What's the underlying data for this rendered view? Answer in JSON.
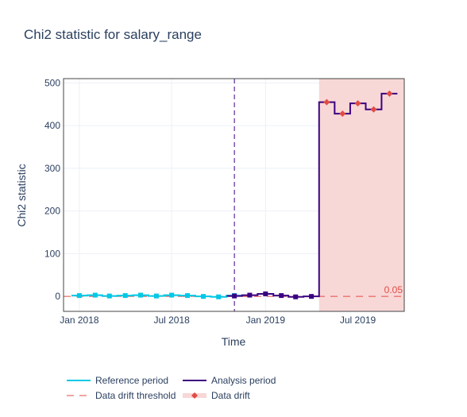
{
  "title": "Chi2 statistic for salary_range",
  "chart_data": {
    "type": "line",
    "title": "Chi2 statistic for salary_range",
    "xlabel": "Time",
    "ylabel": "Chi2 statistic",
    "x_range": [
      "2017-12-01",
      "2019-09-30"
    ],
    "ylim": [
      -35,
      510
    ],
    "x_ticks": [
      {
        "date": "2018-01-01",
        "label": "Jan 2018"
      },
      {
        "date": "2018-07-01",
        "label": "Jul 2018"
      },
      {
        "date": "2019-01-01",
        "label": "Jan 2019"
      },
      {
        "date": "2019-07-01",
        "label": "Jul 2019"
      }
    ],
    "y_ticks": [
      0,
      100,
      200,
      300,
      400,
      500
    ],
    "series": [
      {
        "name": "Reference period",
        "color": "#00c8e5",
        "marker": "square",
        "x": [
          "2018-01-01",
          "2018-02-01",
          "2018-03-01",
          "2018-04-01",
          "2018-05-01",
          "2018-06-01",
          "2018-07-01",
          "2018-08-01",
          "2018-09-01",
          "2018-10-01",
          "2018-11-01"
        ],
        "y": [
          2,
          3,
          1,
          2,
          3,
          1,
          3,
          2,
          0,
          -1,
          2
        ]
      },
      {
        "name": "Analysis period",
        "color": "#3b0280",
        "marker": "square",
        "x": [
          "2018-11-01",
          "2018-12-01",
          "2019-01-01",
          "2019-02-01",
          "2019-03-01",
          "2019-04-01",
          "2019-05-01",
          "2019-06-01",
          "2019-07-01",
          "2019-08-01",
          "2019-09-01"
        ],
        "y": [
          1,
          3,
          6,
          2,
          -1,
          0,
          455,
          428,
          452,
          438,
          475
        ]
      }
    ],
    "threshold": {
      "name": "Data drift threshold",
      "value": 0.05,
      "label": "0.05",
      "color": "#e24c44"
    },
    "drift": {
      "name": "Data drift",
      "start": "2019-04-16",
      "end": "2019-09-30",
      "color": "#f8d7d7",
      "marker_color": "#e24c44",
      "points_x": [
        "2019-05-01",
        "2019-06-01",
        "2019-07-01",
        "2019-08-01",
        "2019-09-01"
      ]
    },
    "period_divider": "2018-11-01",
    "grid": true,
    "legend_position": "bottom-left"
  },
  "legend": {
    "reference": "Reference period",
    "analysis": "Analysis period",
    "threshold": "Data drift threshold",
    "drift": "Data drift"
  }
}
